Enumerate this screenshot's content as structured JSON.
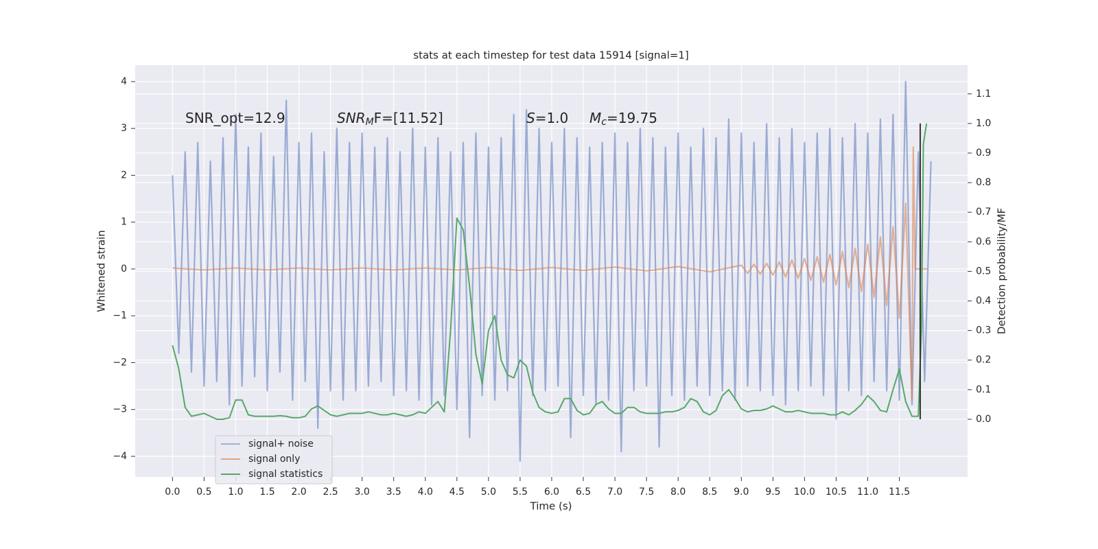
{
  "chart_data": {
    "type": "line",
    "title": "stats at each timestep for test data 15914 [signal=1]",
    "xlabel": "Time (s)",
    "ylabel": "Whitened strain",
    "y2label": "Detection probability/MF",
    "xlim": [
      -0.59,
      12.58
    ],
    "ylim": [
      -4.44,
      4.35
    ],
    "y2lim": [
      -0.195,
      1.197
    ],
    "grid": true,
    "legend": "lower left",
    "xticks": [
      {
        "value": 0,
        "label": "0.0"
      },
      0.5,
      {
        "value": 1,
        "label": "1.0"
      },
      1.5,
      {
        "value": 2,
        "label": "2.0"
      },
      2.5,
      {
        "value": 3,
        "label": "3.0"
      },
      3.5,
      {
        "value": 4,
        "label": "4.0"
      },
      4.5,
      {
        "value": 5,
        "label": "5.0"
      },
      5.5,
      {
        "value": 6,
        "label": "6.0"
      },
      6.5,
      {
        "value": 7,
        "label": "7.0"
      },
      7.5,
      {
        "value": 8,
        "label": "8.0"
      },
      8.5,
      {
        "value": 9,
        "label": "9.0"
      },
      9.5,
      {
        "value": 10,
        "label": "10.0"
      },
      10.5,
      {
        "value": 11,
        "label": "11.0"
      },
      11.5
    ],
    "yticks": [
      {
        "value": -4,
        "label": "−4"
      },
      {
        "value": -3,
        "label": "−3"
      },
      {
        "value": -2,
        "label": "−2"
      },
      {
        "value": -1,
        "label": "−1"
      },
      0,
      1,
      2,
      3,
      4
    ],
    "y2ticks": [
      {
        "value": 0,
        "label": "0.0"
      },
      0.1,
      0.2,
      0.3,
      0.4,
      0.5,
      0.6,
      0.7,
      0.8,
      0.9,
      {
        "value": 1,
        "label": "1.0"
      },
      1.1
    ],
    "annotations": [
      {
        "text": "SNR_opt=12.9"
      },
      {
        "text": "SNR",
        "sub": "M",
        "tail": "F=[11.52]"
      },
      {
        "text": "S",
        "tail": "=1.0"
      },
      {
        "text": "M",
        "sub": "c",
        "tail": "=19.75"
      }
    ],
    "marker_line": {
      "x": 11.83,
      "ymin": 0,
      "ymax": 1.0,
      "color": "#333333"
    },
    "series": [
      {
        "name": "signal+ noise",
        "color": "#7f96c8",
        "axis": "y",
        "x": [
          0,
          0.1,
          0.2,
          0.3,
          0.4,
          0.5,
          0.6,
          0.7,
          0.8,
          0.9,
          1,
          1.1,
          1.2,
          1.3,
          1.4,
          1.5,
          1.6,
          1.7,
          1.8,
          1.9,
          2,
          2.1,
          2.2,
          2.3,
          2.4,
          2.5,
          2.6,
          2.7,
          2.8,
          2.9,
          3,
          3.1,
          3.2,
          3.3,
          3.4,
          3.5,
          3.6,
          3.7,
          3.8,
          3.9,
          4,
          4.1,
          4.2,
          4.3,
          4.4,
          4.5,
          4.6,
          4.7,
          4.8,
          4.9,
          5,
          5.1,
          5.2,
          5.3,
          5.4,
          5.5,
          5.6,
          5.7,
          5.8,
          5.9,
          6,
          6.1,
          6.2,
          6.3,
          6.4,
          6.5,
          6.6,
          6.7,
          6.8,
          6.9,
          7,
          7.1,
          7.2,
          7.3,
          7.4,
          7.5,
          7.6,
          7.7,
          7.8,
          7.9,
          8,
          8.1,
          8.2,
          8.3,
          8.4,
          8.5,
          8.6,
          8.7,
          8.8,
          8.9,
          9,
          9.1,
          9.2,
          9.3,
          9.4,
          9.5,
          9.6,
          9.7,
          9.8,
          9.9,
          10,
          10.1,
          10.2,
          10.3,
          10.4,
          10.5,
          10.6,
          10.7,
          10.8,
          10.9,
          11,
          11.1,
          11.2,
          11.3,
          11.4,
          11.5,
          11.6,
          11.7,
          11.8,
          11.9,
          12
        ],
        "values": [
          2.0,
          -1.8,
          2.5,
          -2.2,
          2.7,
          -2.5,
          2.3,
          -2.4,
          2.8,
          -2.9,
          3.3,
          -2.5,
          2.6,
          -2.3,
          2.9,
          -2.6,
          2.4,
          -2.2,
          3.6,
          -2.8,
          2.7,
          -2.4,
          2.9,
          -3.4,
          2.5,
          -2.6,
          3.0,
          -2.8,
          2.7,
          -2.6,
          2.9,
          -2.5,
          2.6,
          -2.4,
          2.8,
          -2.7,
          2.5,
          -2.6,
          3.0,
          -2.8,
          2.6,
          -2.9,
          2.8,
          -2.7,
          2.5,
          -3.0,
          2.7,
          -3.6,
          2.9,
          -2.7,
          2.6,
          -2.8,
          2.8,
          -2.6,
          3.3,
          -4.1,
          3.4,
          -2.7,
          3.0,
          -2.6,
          2.7,
          -2.5,
          3.0,
          -3.6,
          2.8,
          -2.7,
          2.6,
          -2.9,
          2.7,
          -2.8,
          2.9,
          -3.9,
          2.7,
          -2.6,
          3.0,
          -2.5,
          2.8,
          -3.8,
          2.6,
          -2.7,
          2.9,
          -2.8,
          2.6,
          -2.5,
          3.0,
          -2.7,
          2.8,
          -2.6,
          3.2,
          -2.8,
          2.9,
          -2.5,
          2.7,
          -2.6,
          3.1,
          -2.7,
          2.8,
          -2.9,
          3.0,
          -2.6,
          2.7,
          -2.5,
          2.9,
          -2.7,
          3.0,
          -3.2,
          2.8,
          -2.6,
          3.1,
          -2.7,
          2.9,
          -2.4,
          3.2,
          -2.6,
          3.3,
          -2.8,
          4.0,
          -2.9,
          2.5,
          -2.4,
          2.3
        ]
      },
      {
        "name": "signal only",
        "color": "#dd8452",
        "axis": "y",
        "x": [
          0,
          0.5,
          1,
          1.5,
          2,
          2.5,
          3,
          3.5,
          4,
          4.5,
          5,
          5.5,
          6,
          6.5,
          7,
          7.5,
          8,
          8.5,
          9,
          9.1,
          9.2,
          9.3,
          9.4,
          9.5,
          9.6,
          9.7,
          9.8,
          9.9,
          10,
          10.1,
          10.2,
          10.3,
          10.4,
          10.5,
          10.6,
          10.7,
          10.8,
          10.9,
          11,
          11.1,
          11.2,
          11.3,
          11.4,
          11.5,
          11.6,
          11.7,
          11.72,
          11.75,
          11.95
        ],
        "values": [
          0.02,
          -0.02,
          0.02,
          -0.02,
          0.02,
          -0.02,
          0.02,
          -0.02,
          0.02,
          -0.02,
          0.03,
          -0.03,
          0.03,
          -0.03,
          0.04,
          -0.04,
          0.05,
          -0.06,
          0.08,
          -0.09,
          0.1,
          -0.11,
          0.12,
          -0.13,
          0.15,
          -0.17,
          0.19,
          -0.2,
          0.22,
          -0.24,
          0.26,
          -0.28,
          0.31,
          -0.34,
          0.37,
          -0.4,
          0.44,
          -0.48,
          0.53,
          -0.6,
          0.68,
          -0.78,
          0.9,
          -1.05,
          1.4,
          -2.8,
          2.6,
          0,
          0
        ]
      },
      {
        "name": "signal statistics",
        "color": "#55a868",
        "axis": "y2",
        "x": [
          0,
          0.1,
          0.2,
          0.3,
          0.4,
          0.5,
          0.6,
          0.7,
          0.8,
          0.9,
          1,
          1.1,
          1.2,
          1.3,
          1.4,
          1.5,
          1.6,
          1.7,
          1.8,
          1.9,
          2,
          2.1,
          2.2,
          2.3,
          2.4,
          2.5,
          2.6,
          2.7,
          2.8,
          2.9,
          3,
          3.1,
          3.2,
          3.3,
          3.4,
          3.5,
          3.6,
          3.7,
          3.8,
          3.9,
          4,
          4.1,
          4.2,
          4.3,
          4.4,
          4.5,
          4.6,
          4.7,
          4.8,
          4.9,
          5,
          5.1,
          5.2,
          5.3,
          5.4,
          5.5,
          5.6,
          5.7,
          5.8,
          5.9,
          6,
          6.1,
          6.2,
          6.3,
          6.4,
          6.5,
          6.6,
          6.7,
          6.8,
          6.9,
          7,
          7.1,
          7.2,
          7.3,
          7.4,
          7.5,
          7.6,
          7.7,
          7.8,
          7.9,
          8,
          8.1,
          8.2,
          8.3,
          8.4,
          8.5,
          8.6,
          8.7,
          8.8,
          8.9,
          9,
          9.1,
          9.2,
          9.3,
          9.4,
          9.5,
          9.6,
          9.7,
          9.8,
          9.9,
          10,
          10.1,
          10.2,
          10.3,
          10.4,
          10.5,
          10.6,
          10.7,
          10.8,
          10.9,
          11,
          11.1,
          11.2,
          11.3,
          11.4,
          11.5,
          11.6,
          11.7,
          11.8,
          11.85,
          11.88,
          11.93
        ],
        "values": [
          0.25,
          0.17,
          0.04,
          0.01,
          0.015,
          0.02,
          0.01,
          0.0,
          0.0,
          0.005,
          0.065,
          0.065,
          0.015,
          0.01,
          0.01,
          0.01,
          0.01,
          0.012,
          0.01,
          0.005,
          0.005,
          0.01,
          0.035,
          0.045,
          0.03,
          0.015,
          0.01,
          0.015,
          0.02,
          0.02,
          0.02,
          0.025,
          0.02,
          0.015,
          0.015,
          0.02,
          0.015,
          0.01,
          0.015,
          0.025,
          0.02,
          0.04,
          0.06,
          0.025,
          0.3,
          0.68,
          0.64,
          0.45,
          0.22,
          0.12,
          0.3,
          0.35,
          0.2,
          0.15,
          0.14,
          0.2,
          0.18,
          0.09,
          0.04,
          0.025,
          0.02,
          0.025,
          0.07,
          0.07,
          0.03,
          0.015,
          0.02,
          0.05,
          0.06,
          0.035,
          0.02,
          0.02,
          0.04,
          0.04,
          0.025,
          0.02,
          0.02,
          0.02,
          0.025,
          0.025,
          0.03,
          0.04,
          0.07,
          0.06,
          0.025,
          0.015,
          0.03,
          0.08,
          0.1,
          0.07,
          0.035,
          0.025,
          0.03,
          0.03,
          0.035,
          0.045,
          0.035,
          0.025,
          0.025,
          0.03,
          0.025,
          0.02,
          0.02,
          0.02,
          0.015,
          0.015,
          0.025,
          0.015,
          0.03,
          0.05,
          0.08,
          0.06,
          0.03,
          0.025,
          0.1,
          0.17,
          0.06,
          0.01,
          0.01,
          0.3,
          0.93,
          1.0
        ]
      }
    ]
  }
}
